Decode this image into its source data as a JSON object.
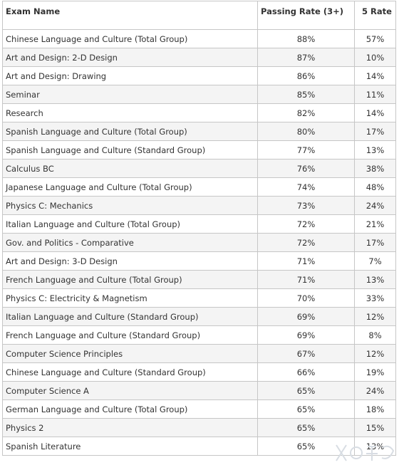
{
  "table": {
    "headers": {
      "exam_name": "Exam Name",
      "passing_rate": "Passing Rate (3+)",
      "five_rate": "5 Rate"
    },
    "rows": [
      {
        "exam": "Chinese Language and Culture (Total Group)",
        "pass": "88%",
        "five": "57%"
      },
      {
        "exam": "Art and Design: 2-D Design",
        "pass": "87%",
        "five": "10%"
      },
      {
        "exam": "Art and Design: Drawing",
        "pass": "86%",
        "five": "14%"
      },
      {
        "exam": "Seminar",
        "pass": "85%",
        "five": "11%"
      },
      {
        "exam": "Research",
        "pass": "82%",
        "five": "14%"
      },
      {
        "exam": "Spanish Language and Culture (Total Group)",
        "pass": "80%",
        "five": "17%"
      },
      {
        "exam": "Spanish Language and Culture (Standard Group)",
        "pass": "77%",
        "five": "13%"
      },
      {
        "exam": "Calculus BC",
        "pass": "76%",
        "five": "38%"
      },
      {
        "exam": "Japanese Language and Culture (Total Group)",
        "pass": "74%",
        "five": "48%"
      },
      {
        "exam": "Physics C: Mechanics",
        "pass": "73%",
        "five": "24%"
      },
      {
        "exam": "Italian Language and Culture (Total Group)",
        "pass": "72%",
        "five": "21%"
      },
      {
        "exam": "Gov. and Politics - Comparative",
        "pass": "72%",
        "five": "17%"
      },
      {
        "exam": "Art and Design: 3-D Design",
        "pass": "71%",
        "five": "7%"
      },
      {
        "exam": "French Language and Culture (Total Group)",
        "pass": "71%",
        "five": "13%"
      },
      {
        "exam": "Physics C: Electricity & Magnetism",
        "pass": "70%",
        "five": "33%"
      },
      {
        "exam": "Italian Language and Culture (Standard Group)",
        "pass": "69%",
        "five": "12%"
      },
      {
        "exam": "French Language and Culture (Standard Group)",
        "pass": "69%",
        "five": "8%"
      },
      {
        "exam": "Computer Science Principles",
        "pass": "67%",
        "five": "12%"
      },
      {
        "exam": "Chinese Language and Culture (Standard Group)",
        "pass": "66%",
        "five": "19%"
      },
      {
        "exam": "Computer Science A",
        "pass": "65%",
        "five": "24%"
      },
      {
        "exam": "German Language and Culture (Total Group)",
        "pass": "65%",
        "five": "18%"
      },
      {
        "exam": "Physics 2",
        "pass": "65%",
        "five": "15%"
      },
      {
        "exam": "Spanish Literature",
        "pass": "65%",
        "five": "13%"
      }
    ]
  },
  "watermark": {
    "icon": "watermark-logo-icon",
    "color": "#d8dde3"
  }
}
